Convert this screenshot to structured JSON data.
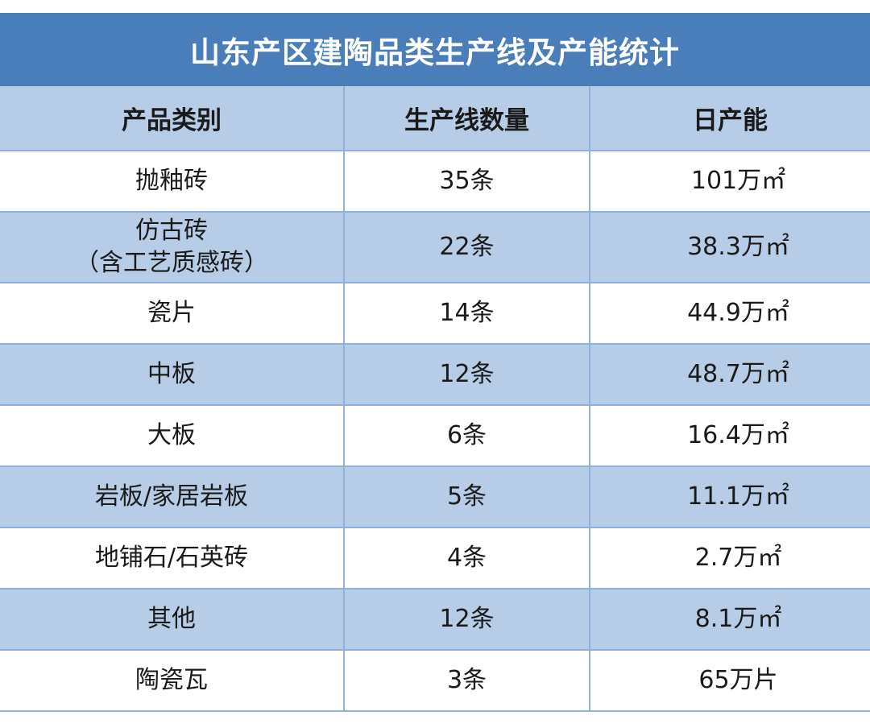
{
  "title": "山东产区建陶品类生产线及产能统计",
  "headers": [
    "产品类别",
    "生产线数量",
    "日产能"
  ],
  "rows": [
    {
      "category": "抛釉砖",
      "category_sub": "",
      "lines": "35条",
      "capacity": "101万㎡"
    },
    {
      "category": "仿古砖",
      "category_sub": "（含工艺质感砖）",
      "lines": "22条",
      "capacity": "38.3万㎡"
    },
    {
      "category": "瓷片",
      "category_sub": "",
      "lines": "14条",
      "capacity": "44.9万㎡"
    },
    {
      "category": "中板",
      "category_sub": "",
      "lines": "12条",
      "capacity": "48.7万㎡"
    },
    {
      "category": "大板",
      "category_sub": "",
      "lines": "6条",
      "capacity": "16.4万㎡"
    },
    {
      "category": "岩板/家居岩板",
      "category_sub": "",
      "lines": "5条",
      "capacity": "11.1万㎡"
    },
    {
      "category": "地铺石/石英砖",
      "category_sub": "",
      "lines": "4条",
      "capacity": "2.7万㎡"
    },
    {
      "category": "其他",
      "category_sub": "",
      "lines": "12条",
      "capacity": "8.1万㎡"
    },
    {
      "category": "陶瓷瓦",
      "category_sub": "",
      "lines": "3条",
      "capacity": "65万片"
    }
  ],
  "colors": {
    "title_bg": "#4a7ebb",
    "stripe": "#b6cce7",
    "border": "#8fb0d8"
  }
}
